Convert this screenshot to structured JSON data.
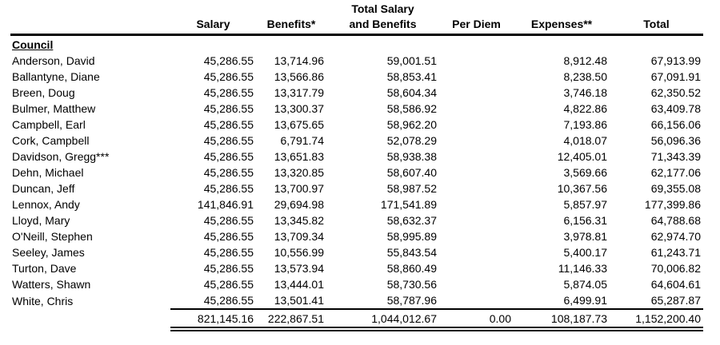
{
  "page": {
    "background_color": "#ffffff",
    "text_color": "#000000"
  },
  "table": {
    "columns": {
      "name": "",
      "salary": "Salary",
      "benefits": "Benefits*",
      "total_salary_benefits_line1": "Total Salary",
      "total_salary_benefits_line2": "and Benefits",
      "per_diem": "Per Diem",
      "expenses": "Expenses**",
      "total": "Total"
    },
    "group_label": "Council",
    "rows": [
      {
        "name": "Anderson, David",
        "salary": "45,286.55",
        "benefits": "13,714.96",
        "total_salary_benefits": "59,001.51",
        "per_diem": "",
        "expenses": "8,912.48",
        "total": "67,913.99"
      },
      {
        "name": "Ballantyne, Diane",
        "salary": "45,286.55",
        "benefits": "13,566.86",
        "total_salary_benefits": "58,853.41",
        "per_diem": "",
        "expenses": "8,238.50",
        "total": "67,091.91"
      },
      {
        "name": "Breen, Doug",
        "salary": "45,286.55",
        "benefits": "13,317.79",
        "total_salary_benefits": "58,604.34",
        "per_diem": "",
        "expenses": "3,746.18",
        "total": "62,350.52"
      },
      {
        "name": "Bulmer, Matthew",
        "salary": "45,286.55",
        "benefits": "13,300.37",
        "total_salary_benefits": "58,586.92",
        "per_diem": "",
        "expenses": "4,822.86",
        "total": "63,409.78"
      },
      {
        "name": "Campbell, Earl",
        "salary": "45,286.55",
        "benefits": "13,675.65",
        "total_salary_benefits": "58,962.20",
        "per_diem": "",
        "expenses": "7,193.86",
        "total": "66,156.06"
      },
      {
        "name": "Cork, Campbell",
        "salary": "45,286.55",
        "benefits": "6,791.74",
        "total_salary_benefits": "52,078.29",
        "per_diem": "",
        "expenses": "4,018.07",
        "total": "56,096.36"
      },
      {
        "name": "Davidson, Gregg***",
        "salary": "45,286.55",
        "benefits": "13,651.83",
        "total_salary_benefits": "58,938.38",
        "per_diem": "",
        "expenses": "12,405.01",
        "total": "71,343.39"
      },
      {
        "name": "Dehn, Michael",
        "salary": "45,286.55",
        "benefits": "13,320.85",
        "total_salary_benefits": "58,607.40",
        "per_diem": "",
        "expenses": "3,569.66",
        "total": "62,177.06"
      },
      {
        "name": "Duncan, Jeff",
        "salary": "45,286.55",
        "benefits": "13,700.97",
        "total_salary_benefits": "58,987.52",
        "per_diem": "",
        "expenses": "10,367.56",
        "total": "69,355.08"
      },
      {
        "name": "Lennox, Andy",
        "salary": "141,846.91",
        "benefits": "29,694.98",
        "total_salary_benefits": "171,541.89",
        "per_diem": "",
        "expenses": "5,857.97",
        "total": "177,399.86"
      },
      {
        "name": "Lloyd, Mary",
        "salary": "45,286.55",
        "benefits": "13,345.82",
        "total_salary_benefits": "58,632.37",
        "per_diem": "",
        "expenses": "6,156.31",
        "total": "64,788.68"
      },
      {
        "name": "O'Neill, Stephen",
        "salary": "45,286.55",
        "benefits": "13,709.34",
        "total_salary_benefits": "58,995.89",
        "per_diem": "",
        "expenses": "3,978.81",
        "total": "62,974.70"
      },
      {
        "name": "Seeley, James",
        "salary": "45,286.55",
        "benefits": "10,556.99",
        "total_salary_benefits": "55,843.54",
        "per_diem": "",
        "expenses": "5,400.17",
        "total": "61,243.71"
      },
      {
        "name": "Turton, Dave",
        "salary": "45,286.55",
        "benefits": "13,573.94",
        "total_salary_benefits": "58,860.49",
        "per_diem": "",
        "expenses": "11,146.33",
        "total": "70,006.82"
      },
      {
        "name": "Watters, Shawn",
        "salary": "45,286.55",
        "benefits": "13,444.01",
        "total_salary_benefits": "58,730.56",
        "per_diem": "",
        "expenses": "5,874.05",
        "total": "64,604.61"
      },
      {
        "name": "White, Chris",
        "salary": "45,286.55",
        "benefits": "13,501.41",
        "total_salary_benefits": "58,787.96",
        "per_diem": "",
        "expenses": "6,499.91",
        "total": "65,287.87"
      }
    ],
    "totals": {
      "name": "",
      "salary": "821,145.16",
      "benefits": "222,867.51",
      "total_salary_benefits": "1,044,012.67",
      "per_diem": "0.00",
      "expenses": "108,187.73",
      "total": "1,152,200.40"
    }
  }
}
